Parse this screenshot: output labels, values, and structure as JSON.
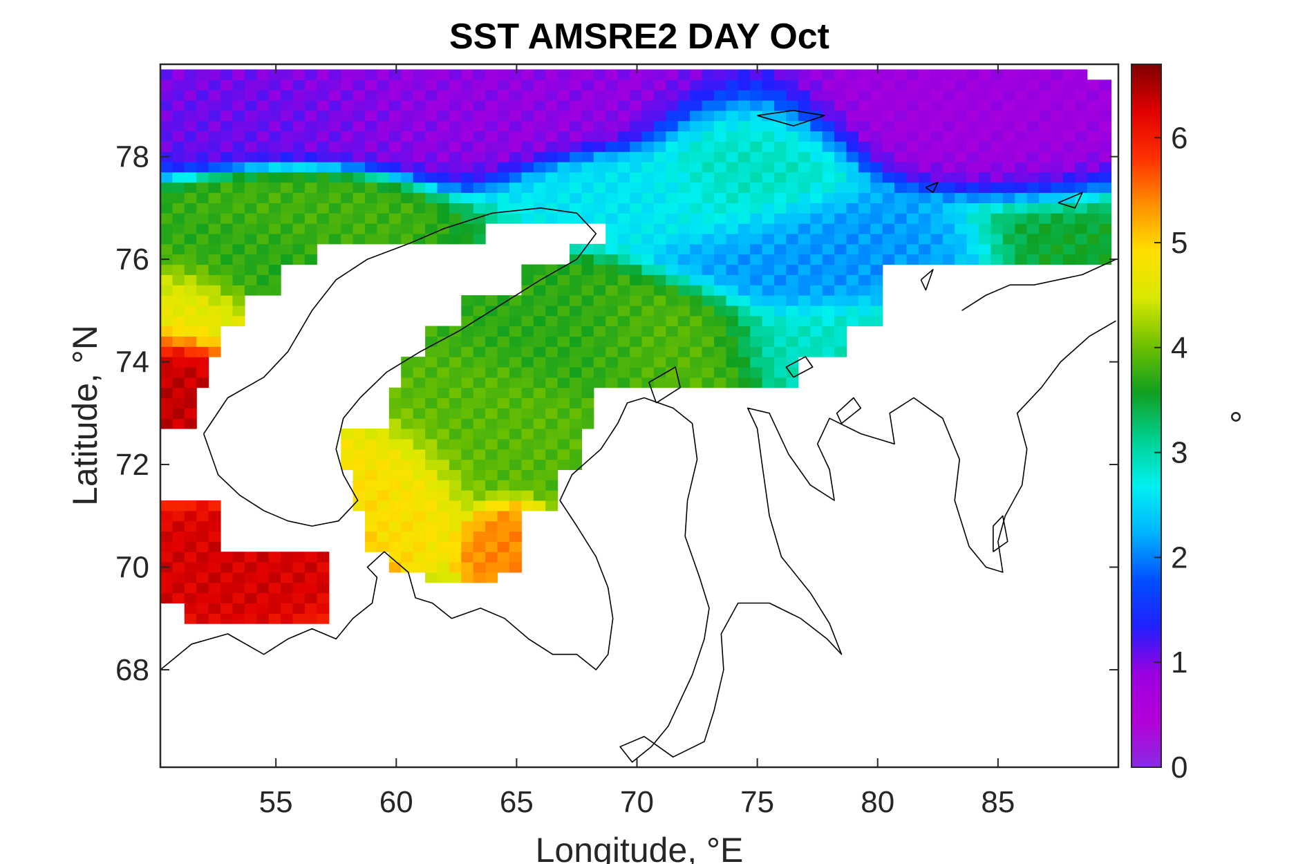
{
  "chart_data": {
    "type": "heatmap",
    "title": "SST AMSRE2 DAY Oct",
    "xlabel": "Longitude, °E",
    "ylabel": "Latitude, °N",
    "colorbar_label": "°",
    "x_range": [
      50.2,
      90
    ],
    "y_range": [
      66.1,
      79.8
    ],
    "x_ticks": [
      "55",
      "60",
      "65",
      "70",
      "75",
      "80",
      "85"
    ],
    "x_tick_values": [
      55,
      60,
      65,
      70,
      75,
      80,
      85
    ],
    "y_ticks": [
      "68",
      "70",
      "72",
      "74",
      "76",
      "78"
    ],
    "y_tick_values": [
      68,
      70,
      72,
      74,
      76,
      78
    ],
    "colorbar_ticks": [
      "0",
      "1",
      "2",
      "3",
      "4",
      "5",
      "6"
    ],
    "colorbar_tick_values": [
      0,
      1,
      2,
      3,
      4,
      5,
      6
    ],
    "colorbar_range": [
      0,
      6.7
    ],
    "colormap": [
      "#8a2be2",
      "#b400d8",
      "#9a00e0",
      "#2020ff",
      "#0050ff",
      "#00b4ff",
      "#00f0f0",
      "#00d090",
      "#10a020",
      "#70c000",
      "#d8e800",
      "#ffe000",
      "#ff9000",
      "#ff3000",
      "#e00000",
      "#800000"
    ],
    "grid": false,
    "colorbar": "right",
    "sst_blobs": [
      {
        "lon": 62.0,
        "lat": 79.3,
        "sx": 8.0,
        "sy": 0.8,
        "v": 0.9
      },
      {
        "lon": 84.0,
        "lat": 79.2,
        "sx": 5.0,
        "sy": 0.8,
        "v": 0.8
      },
      {
        "lon": 55.0,
        "lat": 79.0,
        "sx": 4.0,
        "sy": 0.6,
        "v": 1.1
      },
      {
        "lon": 74.5,
        "lat": 77.8,
        "sx": 2.5,
        "sy": 0.9,
        "v": 2.9
      },
      {
        "lon": 70.0,
        "lat": 77.3,
        "sx": 2.5,
        "sy": 0.5,
        "v": 2.6
      },
      {
        "lon": 56.0,
        "lat": 76.9,
        "sx": 2.5,
        "sy": 0.5,
        "v": 3.8
      },
      {
        "lon": 54.0,
        "lat": 76.0,
        "sx": 2.5,
        "sy": 0.6,
        "v": 3.7
      },
      {
        "lon": 51.5,
        "lat": 75.0,
        "sx": 1.5,
        "sy": 0.6,
        "v": 4.6
      },
      {
        "lon": 51.0,
        "lat": 73.6,
        "sx": 1.2,
        "sy": 0.7,
        "v": 6.4
      },
      {
        "lon": 53.0,
        "lat": 70.0,
        "sx": 3.0,
        "sy": 0.6,
        "v": 6.3
      },
      {
        "lon": 71.5,
        "lat": 74.5,
        "sx": 2.5,
        "sy": 0.6,
        "v": 3.9
      },
      {
        "lon": 67.0,
        "lat": 74.5,
        "sx": 3.0,
        "sy": 0.6,
        "v": 3.7
      },
      {
        "lon": 63.0,
        "lat": 72.8,
        "sx": 2.5,
        "sy": 1.0,
        "v": 3.9
      },
      {
        "lon": 60.0,
        "lat": 71.6,
        "sx": 1.8,
        "sy": 0.8,
        "v": 4.9
      },
      {
        "lon": 64.5,
        "lat": 70.5,
        "sx": 1.0,
        "sy": 0.5,
        "v": 5.4
      },
      {
        "lon": 77.0,
        "lat": 76.0,
        "sx": 3.0,
        "sy": 0.8,
        "v": 2.1
      },
      {
        "lon": 78.0,
        "lat": 74.5,
        "sx": 3.0,
        "sy": 0.5,
        "v": 2.9
      }
    ],
    "sst_coverage": [
      {
        "lat_min": 79.6,
        "lat_max": 79.8,
        "lon_min": 50.2,
        "lon_max": 88.5
      },
      {
        "lat_min": 76.8,
        "lat_max": 79.6,
        "lon_min": 50.2,
        "lon_max": 89.8
      },
      {
        "lat_min": 76.3,
        "lat_max": 76.8,
        "lon_min": 50.2,
        "lon_max": 63.5
      },
      {
        "lat_min": 76.3,
        "lat_max": 76.8,
        "lon_min": 68.5,
        "lon_max": 89.8
      },
      {
        "lat_min": 75.9,
        "lat_max": 76.3,
        "lon_min": 50.2,
        "lon_max": 56.8
      },
      {
        "lat_min": 75.9,
        "lat_max": 76.3,
        "lon_min": 67.0,
        "lon_max": 89.8
      },
      {
        "lat_min": 75.4,
        "lat_max": 75.9,
        "lon_min": 50.2,
        "lon_max": 55.0
      },
      {
        "lat_min": 75.4,
        "lat_max": 75.9,
        "lon_min": 65.0,
        "lon_max": 80.0
      },
      {
        "lat_min": 74.8,
        "lat_max": 75.4,
        "lon_min": 50.2,
        "lon_max": 53.5
      },
      {
        "lat_min": 74.8,
        "lat_max": 75.4,
        "lon_min": 62.5,
        "lon_max": 80.0
      },
      {
        "lat_min": 74.2,
        "lat_max": 74.8,
        "lon_min": 50.2,
        "lon_max": 52.5
      },
      {
        "lat_min": 74.2,
        "lat_max": 74.8,
        "lon_min": 61.0,
        "lon_max": 78.5
      },
      {
        "lat_min": 73.6,
        "lat_max": 74.2,
        "lon_min": 50.2,
        "lon_max": 52.0
      },
      {
        "lat_min": 73.6,
        "lat_max": 74.2,
        "lon_min": 60.0,
        "lon_max": 76.5
      },
      {
        "lat_min": 72.8,
        "lat_max": 73.6,
        "lon_min": 50.2,
        "lon_max": 51.5
      },
      {
        "lat_min": 72.8,
        "lat_max": 73.6,
        "lon_min": 59.5,
        "lon_max": 68.0
      },
      {
        "lat_min": 72.0,
        "lat_max": 72.8,
        "lon_min": 57.5,
        "lon_max": 67.5
      },
      {
        "lat_min": 71.2,
        "lat_max": 72.0,
        "lon_min": 58.0,
        "lon_max": 66.5
      },
      {
        "lat_min": 70.4,
        "lat_max": 71.2,
        "lon_min": 58.5,
        "lon_max": 65.2
      },
      {
        "lat_min": 70.0,
        "lat_max": 70.4,
        "lon_min": 59.5,
        "lon_max": 65.2
      },
      {
        "lat_min": 69.8,
        "lat_max": 70.0,
        "lon_min": 61.0,
        "lon_max": 64.0
      },
      {
        "lat_min": 70.3,
        "lat_max": 71.3,
        "lon_min": 50.2,
        "lon_max": 52.5
      },
      {
        "lat_min": 69.4,
        "lat_max": 70.3,
        "lon_min": 50.2,
        "lon_max": 57.3
      },
      {
        "lat_min": 69.0,
        "lat_max": 69.4,
        "lon_min": 51.0,
        "lon_max": 57.0
      }
    ],
    "coastlines": [
      [
        [
          50.2,
          68.0
        ],
        [
          51.5,
          68.5
        ],
        [
          53.0,
          68.7
        ],
        [
          54.5,
          68.3
        ],
        [
          55.5,
          68.6
        ],
        [
          56.5,
          68.8
        ],
        [
          57.5,
          68.6
        ],
        [
          58.2,
          69.0
        ],
        [
          59.0,
          69.3
        ],
        [
          59.2,
          69.8
        ],
        [
          58.8,
          70.0
        ],
        [
          59.5,
          70.3
        ],
        [
          60.5,
          69.9
        ],
        [
          60.8,
          69.4
        ],
        [
          61.5,
          69.3
        ],
        [
          62.3,
          69.0
        ],
        [
          63.5,
          69.2
        ],
        [
          64.5,
          69.0
        ],
        [
          65.5,
          68.6
        ],
        [
          66.5,
          68.3
        ],
        [
          67.5,
          68.3
        ],
        [
          68.3,
          68.0
        ],
        [
          68.8,
          68.3
        ],
        [
          69.0,
          69.0
        ],
        [
          68.8,
          69.6
        ],
        [
          68.3,
          70.2
        ],
        [
          67.5,
          70.8
        ],
        [
          66.8,
          71.3
        ],
        [
          67.3,
          71.8
        ],
        [
          68.5,
          72.3
        ],
        [
          69.2,
          72.8
        ],
        [
          69.6,
          73.2
        ],
        [
          70.3,
          73.3
        ],
        [
          71.5,
          73.1
        ],
        [
          72.3,
          72.8
        ],
        [
          72.5,
          72.1
        ],
        [
          72.1,
          71.3
        ],
        [
          72.0,
          70.6
        ],
        [
          72.6,
          69.8
        ],
        [
          73.0,
          69.2
        ],
        [
          72.8,
          68.6
        ],
        [
          72.3,
          67.9
        ],
        [
          71.8,
          67.4
        ],
        [
          71.3,
          66.9
        ],
        [
          70.6,
          66.5
        ],
        [
          69.8,
          66.2
        ],
        [
          69.3,
          66.5
        ],
        [
          70.3,
          66.7
        ],
        [
          71.5,
          66.3
        ],
        [
          72.8,
          66.6
        ],
        [
          73.2,
          67.2
        ],
        [
          73.6,
          68.0
        ],
        [
          73.5,
          68.7
        ],
        [
          74.2,
          69.3
        ],
        [
          75.5,
          69.3
        ],
        [
          76.8,
          69.0
        ],
        [
          77.9,
          68.6
        ],
        [
          78.5,
          68.3
        ],
        [
          78.0,
          68.9
        ],
        [
          77.2,
          69.5
        ],
        [
          76.0,
          70.2
        ],
        [
          75.5,
          71.0
        ],
        [
          75.2,
          72.0
        ],
        [
          75.0,
          72.7
        ],
        [
          74.6,
          73.1
        ],
        [
          75.5,
          73.0
        ],
        [
          76.3,
          72.2
        ],
        [
          77.2,
          71.6
        ],
        [
          78.2,
          71.3
        ],
        [
          78.0,
          71.9
        ],
        [
          77.5,
          72.4
        ],
        [
          78.0,
          72.9
        ],
        [
          79.3,
          72.6
        ],
        [
          80.7,
          72.4
        ],
        [
          80.5,
          73.0
        ],
        [
          81.5,
          73.3
        ],
        [
          82.7,
          72.9
        ],
        [
          83.4,
          72.1
        ],
        [
          83.2,
          71.3
        ],
        [
          83.8,
          70.4
        ],
        [
          84.5,
          70.0
        ],
        [
          85.2,
          69.9
        ],
        [
          85.0,
          70.5
        ],
        [
          85.3,
          71.0
        ],
        [
          86.0,
          71.6
        ],
        [
          86.2,
          72.3
        ],
        [
          85.8,
          73.0
        ],
        [
          86.8,
          73.5
        ],
        [
          87.6,
          74.0
        ],
        [
          88.8,
          74.5
        ],
        [
          89.9,
          74.8
        ]
      ],
      [
        [
          52.0,
          72.6
        ],
        [
          53.0,
          73.3
        ],
        [
          54.5,
          73.7
        ],
        [
          55.5,
          74.2
        ],
        [
          56.5,
          75.0
        ],
        [
          57.5,
          75.6
        ],
        [
          58.8,
          76.0
        ],
        [
          60.5,
          76.3
        ],
        [
          62.0,
          76.6
        ],
        [
          64.0,
          76.9
        ],
        [
          66.0,
          77.0
        ],
        [
          67.5,
          76.9
        ],
        [
          68.3,
          76.5
        ],
        [
          67.5,
          76.0
        ],
        [
          66.0,
          75.6
        ],
        [
          64.3,
          75.1
        ],
        [
          62.6,
          74.6
        ],
        [
          61.0,
          74.2
        ],
        [
          59.6,
          73.8
        ],
        [
          58.5,
          73.3
        ],
        [
          57.8,
          72.9
        ],
        [
          57.5,
          72.3
        ],
        [
          57.8,
          71.8
        ],
        [
          58.4,
          71.3
        ],
        [
          57.6,
          70.9
        ],
        [
          56.5,
          70.8
        ],
        [
          55.5,
          70.9
        ],
        [
          54.5,
          71.1
        ],
        [
          53.5,
          71.4
        ],
        [
          52.6,
          71.8
        ],
        [
          52.0,
          72.6
        ]
      ],
      [
        [
          70.8,
          73.2
        ],
        [
          71.8,
          73.5
        ],
        [
          71.6,
          73.9
        ],
        [
          70.5,
          73.6
        ],
        [
          70.8,
          73.2
        ]
      ],
      [
        [
          76.5,
          73.7
        ],
        [
          77.3,
          73.9
        ],
        [
          77.0,
          74.1
        ],
        [
          76.2,
          73.9
        ],
        [
          76.5,
          73.7
        ]
      ],
      [
        [
          78.5,
          72.8
        ],
        [
          79.3,
          73.1
        ],
        [
          79.0,
          73.3
        ],
        [
          78.3,
          73.0
        ],
        [
          78.5,
          72.8
        ]
      ],
      [
        [
          84.8,
          70.3
        ],
        [
          85.4,
          70.5
        ],
        [
          85.2,
          71.0
        ],
        [
          84.8,
          70.8
        ],
        [
          84.8,
          70.3
        ]
      ],
      [
        [
          75.0,
          78.8
        ],
        [
          76.5,
          78.9
        ],
        [
          77.8,
          78.8
        ],
        [
          76.5,
          78.6
        ],
        [
          75.0,
          78.8
        ]
      ],
      [
        [
          82.0,
          77.4
        ],
        [
          82.5,
          77.5
        ],
        [
          82.3,
          77.3
        ],
        [
          82.0,
          77.4
        ]
      ],
      [
        [
          87.5,
          77.1
        ],
        [
          88.5,
          77.3
        ],
        [
          88.2,
          77.0
        ],
        [
          87.5,
          77.1
        ]
      ],
      [
        [
          81.8,
          75.6
        ],
        [
          82.3,
          75.8
        ],
        [
          82.0,
          75.4
        ],
        [
          81.8,
          75.6
        ]
      ],
      [
        [
          83.5,
          75.0
        ],
        [
          84.5,
          75.3
        ],
        [
          85.5,
          75.5
        ],
        [
          86.5,
          75.5
        ],
        [
          87.5,
          75.6
        ],
        [
          88.5,
          75.7
        ],
        [
          89.9,
          76.0
        ]
      ]
    ]
  }
}
